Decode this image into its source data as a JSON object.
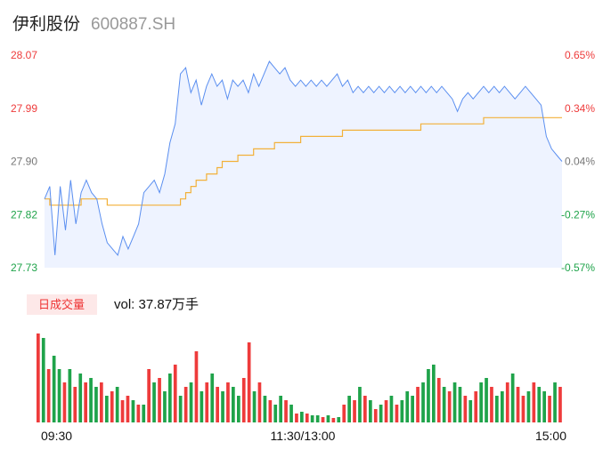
{
  "header": {
    "name": "伊利股份",
    "code": "600887.SH"
  },
  "colors": {
    "up": "#ee3b3b",
    "down": "#1fa34a",
    "price": "#5b8ff0",
    "avg": "#f2b13a",
    "area": "#eef3ff"
  },
  "volume_panel": {
    "badge": "日成交量",
    "vol_label": "vol: 37.87万手"
  },
  "chart_data": {
    "type": "line",
    "price_axis": {
      "ylim": [
        27.73,
        28.07
      ],
      "left_ticks": [
        "28.07",
        "27.99",
        "27.90",
        "27.82",
        "27.73"
      ],
      "right_ticks": [
        "0.65%",
        "0.34%",
        "0.04%",
        "-0.27%",
        "-0.57%"
      ]
    },
    "x_labels": [
      "09:30",
      "11:30/13:00",
      "15:00"
    ],
    "series": [
      {
        "values": [
          27.84,
          27.86,
          27.75,
          27.86,
          27.79,
          27.87,
          27.8,
          27.85,
          27.87,
          27.85,
          27.84,
          27.8,
          27.77,
          27.76,
          27.75,
          27.78,
          27.76,
          27.78,
          27.8,
          27.85,
          27.86,
          27.87,
          27.85,
          27.88,
          27.93,
          27.96,
          28.04,
          28.05,
          28.01,
          28.03,
          27.99,
          28.02,
          28.04,
          28.02,
          28.03,
          28.0,
          28.03,
          28.02,
          28.03,
          28.01,
          28.04,
          28.02,
          28.04,
          28.06,
          28.05,
          28.04,
          28.05,
          28.03,
          28.02,
          28.03,
          28.02,
          28.03,
          28.02,
          28.03,
          28.02,
          28.03,
          28.04,
          28.02,
          28.03,
          28.01,
          28.02,
          28.01,
          28.02,
          28.01,
          28.02,
          28.01,
          28.02,
          28.01,
          28.02,
          28.01,
          28.02,
          28.01,
          28.02,
          28.01,
          28.02,
          28.01,
          28.02,
          28.01,
          28.0,
          27.98,
          28.0,
          28.01,
          28.0,
          28.01,
          28.02,
          28.01,
          28.02,
          28.01,
          28.02,
          28.01,
          28.0,
          28.01,
          28.02,
          28.01,
          28.0,
          27.99,
          27.94,
          27.92,
          27.91,
          27.9
        ]
      },
      {
        "values": [
          27.84,
          27.83,
          27.83,
          27.83,
          27.83,
          27.83,
          27.83,
          27.84,
          27.84,
          27.84,
          27.84,
          27.84,
          27.83,
          27.83,
          27.83,
          27.83,
          27.83,
          27.83,
          27.83,
          27.83,
          27.83,
          27.83,
          27.83,
          27.83,
          27.83,
          27.83,
          27.84,
          27.85,
          27.86,
          27.87,
          27.87,
          27.88,
          27.88,
          27.89,
          27.9,
          27.9,
          27.9,
          27.91,
          27.91,
          27.91,
          27.92,
          27.92,
          27.92,
          27.92,
          27.93,
          27.93,
          27.93,
          27.93,
          27.93,
          27.94,
          27.94,
          27.94,
          27.94,
          27.94,
          27.94,
          27.94,
          27.94,
          27.95,
          27.95,
          27.95,
          27.95,
          27.95,
          27.95,
          27.95,
          27.95,
          27.95,
          27.95,
          27.95,
          27.95,
          27.95,
          27.95,
          27.95,
          27.96,
          27.96,
          27.96,
          27.96,
          27.96,
          27.96,
          27.96,
          27.96,
          27.96,
          27.96,
          27.96,
          27.96,
          27.97,
          27.97,
          27.97,
          27.97,
          27.97,
          27.97,
          27.97,
          27.97,
          27.97,
          27.97,
          27.97,
          27.97,
          27.97,
          27.97,
          27.97,
          27.97
        ]
      }
    ],
    "volume": {
      "values": [
        100,
        95,
        60,
        75,
        60,
        45,
        60,
        40,
        55,
        45,
        50,
        40,
        45,
        30,
        35,
        40,
        25,
        30,
        25,
        20,
        20,
        60,
        45,
        50,
        35,
        55,
        65,
        30,
        40,
        45,
        80,
        35,
        45,
        55,
        40,
        35,
        45,
        40,
        30,
        50,
        90,
        35,
        45,
        30,
        25,
        20,
        30,
        25,
        20,
        10,
        12,
        10,
        8,
        8,
        6,
        8,
        5,
        6,
        20,
        30,
        25,
        40,
        30,
        25,
        15,
        20,
        25,
        30,
        20,
        25,
        35,
        30,
        40,
        45,
        60,
        65,
        50,
        40,
        35,
        45,
        40,
        30,
        25,
        35,
        45,
        50,
        40,
        30,
        35,
        45,
        55,
        40,
        30,
        35,
        45,
        40,
        35,
        30,
        45,
        40
      ],
      "up": [
        1,
        0,
        1,
        0,
        0,
        1,
        0,
        1,
        0,
        1,
        0,
        0,
        1,
        0,
        1,
        0,
        1,
        1,
        0,
        1,
        0,
        1,
        0,
        1,
        0,
        0,
        1,
        0,
        1,
        0,
        1,
        0,
        1,
        0,
        1,
        0,
        1,
        0,
        0,
        1,
        1,
        0,
        1,
        0,
        1,
        0,
        0,
        1,
        0,
        1,
        0,
        1,
        0,
        0,
        1,
        0,
        1,
        0,
        1,
        0,
        1,
        0,
        1,
        0,
        1,
        0,
        1,
        0,
        1,
        0,
        0,
        0,
        1,
        0,
        0,
        0,
        1,
        0,
        1,
        0,
        0,
        1,
        0,
        1,
        0,
        0,
        1,
        0,
        0,
        1,
        0,
        1,
        1,
        0,
        1,
        0,
        0,
        1,
        0,
        1
      ]
    }
  }
}
